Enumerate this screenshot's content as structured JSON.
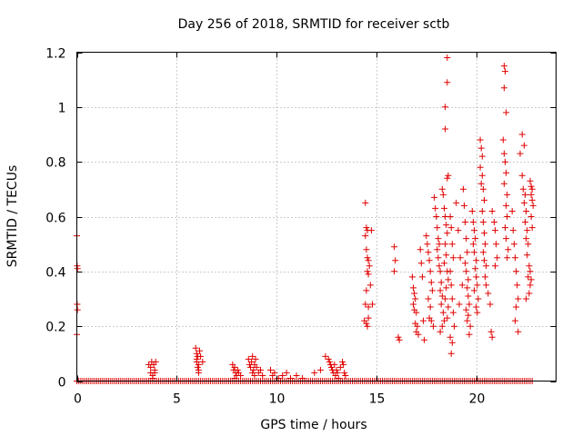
{
  "chart_data": {
    "type": "scatter",
    "title": "Day 256 of 2018, SRMTID for receiver sctb",
    "xlabel": "GPS time / hours",
    "ylabel": "SRMTID / TECUs",
    "xlim": [
      0,
      24
    ],
    "ylim": [
      0,
      1.2
    ],
    "grid": true,
    "marker": "+",
    "color": "#e00000",
    "x_ticks": [
      0,
      5,
      10,
      15,
      20
    ],
    "x_tick_labels": [
      "0",
      "5",
      "10",
      "15",
      "20"
    ],
    "y_ticks": [
      0,
      0.2,
      0.4,
      0.6,
      0.8,
      1.0,
      1.2
    ],
    "y_tick_labels": [
      "0",
      "0.2",
      "0.4",
      "0.6",
      "0.8",
      "1",
      "1.2"
    ],
    "baseline": {
      "x_start": 0.0,
      "x_end": 22.8,
      "step": 0.1,
      "y": 0.0
    },
    "points": [
      [
        0.0,
        0.53
      ],
      [
        0.02,
        0.42
      ],
      [
        0.03,
        0.41
      ],
      [
        0.02,
        0.28
      ],
      [
        0.03,
        0.26
      ],
      [
        0.0,
        0.17
      ],
      [
        3.6,
        0.06
      ],
      [
        3.7,
        0.05
      ],
      [
        3.7,
        0.03
      ],
      [
        3.75,
        0.07
      ],
      [
        3.8,
        0.02
      ],
      [
        3.85,
        0.06
      ],
      [
        3.9,
        0.04
      ],
      [
        3.95,
        0.07
      ],
      [
        3.9,
        0.03
      ],
      [
        3.8,
        0.01
      ],
      [
        5.95,
        0.12
      ],
      [
        6.0,
        0.1
      ],
      [
        6.05,
        0.09
      ],
      [
        6.0,
        0.07
      ],
      [
        6.1,
        0.06
      ],
      [
        6.05,
        0.05
      ],
      [
        6.1,
        0.04
      ],
      [
        6.0,
        0.08
      ],
      [
        6.15,
        0.11
      ],
      [
        6.2,
        0.09
      ],
      [
        6.3,
        0.07
      ],
      [
        6.1,
        0.03
      ],
      [
        7.8,
        0.06
      ],
      [
        7.85,
        0.04
      ],
      [
        7.9,
        0.05
      ],
      [
        7.95,
        0.03
      ],
      [
        8.0,
        0.02
      ],
      [
        8.05,
        0.04
      ],
      [
        7.9,
        0.01
      ],
      [
        8.1,
        0.03
      ],
      [
        8.2,
        0.02
      ],
      [
        8.6,
        0.08
      ],
      [
        8.65,
        0.06
      ],
      [
        8.7,
        0.05
      ],
      [
        8.75,
        0.07
      ],
      [
        8.8,
        0.09
      ],
      [
        8.85,
        0.04
      ],
      [
        8.9,
        0.06
      ],
      [
        8.95,
        0.08
      ],
      [
        8.8,
        0.03
      ],
      [
        8.9,
        0.02
      ],
      [
        9.0,
        0.05
      ],
      [
        9.1,
        0.03
      ],
      [
        9.2,
        0.04
      ],
      [
        9.3,
        0.02
      ],
      [
        9.7,
        0.04
      ],
      [
        9.8,
        0.02
      ],
      [
        9.9,
        0.03
      ],
      [
        10.1,
        0.01
      ],
      [
        10.3,
        0.02
      ],
      [
        10.5,
        0.03
      ],
      [
        10.7,
        0.01
      ],
      [
        11.0,
        0.02
      ],
      [
        11.3,
        0.01
      ],
      [
        11.9,
        0.03
      ],
      [
        12.2,
        0.04
      ],
      [
        12.45,
        0.09
      ],
      [
        12.6,
        0.08
      ],
      [
        12.65,
        0.07
      ],
      [
        12.7,
        0.06
      ],
      [
        12.75,
        0.05
      ],
      [
        12.8,
        0.04
      ],
      [
        12.85,
        0.03
      ],
      [
        12.9,
        0.06
      ],
      [
        12.95,
        0.02
      ],
      [
        13.0,
        0.04
      ],
      [
        13.05,
        0.03
      ],
      [
        13.1,
        0.01
      ],
      [
        13.2,
        0.05
      ],
      [
        13.3,
        0.07
      ],
      [
        13.35,
        0.06
      ],
      [
        13.4,
        0.03
      ],
      [
        13.45,
        0.02
      ],
      [
        14.45,
        0.65
      ],
      [
        14.5,
        0.56
      ],
      [
        14.55,
        0.55
      ],
      [
        14.45,
        0.53
      ],
      [
        14.5,
        0.48
      ],
      [
        14.55,
        0.45
      ],
      [
        14.6,
        0.44
      ],
      [
        14.65,
        0.42
      ],
      [
        14.55,
        0.4
      ],
      [
        14.6,
        0.39
      ],
      [
        14.7,
        0.35
      ],
      [
        14.5,
        0.33
      ],
      [
        14.45,
        0.28
      ],
      [
        14.6,
        0.27
      ],
      [
        14.4,
        0.22
      ],
      [
        14.5,
        0.21
      ],
      [
        14.55,
        0.2
      ],
      [
        14.6,
        0.23
      ],
      [
        14.75,
        0.55
      ],
      [
        14.8,
        0.28
      ],
      [
        15.9,
        0.49
      ],
      [
        15.95,
        0.44
      ],
      [
        15.9,
        0.4
      ],
      [
        16.1,
        0.16
      ],
      [
        16.15,
        0.15
      ],
      [
        16.8,
        0.38
      ],
      [
        16.85,
        0.34
      ],
      [
        16.9,
        0.32
      ],
      [
        16.95,
        0.3
      ],
      [
        16.85,
        0.28
      ],
      [
        16.9,
        0.26
      ],
      [
        17.0,
        0.25
      ],
      [
        16.95,
        0.21
      ],
      [
        17.0,
        0.18
      ],
      [
        17.1,
        0.17
      ],
      [
        17.05,
        0.2
      ],
      [
        17.2,
        0.48
      ],
      [
        17.25,
        0.43
      ],
      [
        17.3,
        0.38
      ],
      [
        17.35,
        0.22
      ],
      [
        17.4,
        0.15
      ],
      [
        17.5,
        0.53
      ],
      [
        17.55,
        0.5
      ],
      [
        17.6,
        0.47
      ],
      [
        17.65,
        0.44
      ],
      [
        17.7,
        0.4
      ],
      [
        17.75,
        0.36
      ],
      [
        17.8,
        0.33
      ],
      [
        17.6,
        0.3
      ],
      [
        17.7,
        0.27
      ],
      [
        17.65,
        0.23
      ],
      [
        17.75,
        0.22
      ],
      [
        17.85,
        0.2
      ],
      [
        17.9,
        0.67
      ],
      [
        17.95,
        0.63
      ],
      [
        18.0,
        0.6
      ],
      [
        18.05,
        0.56
      ],
      [
        18.1,
        0.52
      ],
      [
        18.15,
        0.5
      ],
      [
        18.05,
        0.48
      ],
      [
        18.1,
        0.45
      ],
      [
        18.15,
        0.42
      ],
      [
        18.2,
        0.4
      ],
      [
        18.25,
        0.36
      ],
      [
        18.2,
        0.33
      ],
      [
        18.3,
        0.31
      ],
      [
        18.25,
        0.28
      ],
      [
        18.35,
        0.25
      ],
      [
        18.4,
        0.22
      ],
      [
        18.3,
        0.2
      ],
      [
        18.2,
        0.18
      ],
      [
        18.3,
        0.7
      ],
      [
        18.35,
        0.68
      ],
      [
        18.4,
        0.63
      ],
      [
        18.45,
        0.6
      ],
      [
        18.5,
        0.57
      ],
      [
        18.55,
        0.54
      ],
      [
        18.45,
        0.5
      ],
      [
        18.5,
        0.46
      ],
      [
        18.4,
        0.43
      ],
      [
        18.55,
        0.4
      ],
      [
        18.6,
        0.37
      ],
      [
        18.5,
        0.34
      ],
      [
        18.45,
        0.3
      ],
      [
        18.6,
        0.27
      ],
      [
        18.55,
        0.23
      ],
      [
        18.55,
        1.18
      ],
      [
        18.55,
        1.09
      ],
      [
        18.45,
        1.0
      ],
      [
        18.45,
        0.92
      ],
      [
        18.6,
        0.75
      ],
      [
        18.55,
        0.74
      ],
      [
        18.7,
        0.6
      ],
      [
        18.75,
        0.56
      ],
      [
        18.8,
        0.5
      ],
      [
        18.85,
        0.45
      ],
      [
        18.7,
        0.4
      ],
      [
        18.75,
        0.35
      ],
      [
        18.8,
        0.3
      ],
      [
        18.85,
        0.25
      ],
      [
        18.9,
        0.2
      ],
      [
        18.7,
        0.16
      ],
      [
        18.8,
        0.14
      ],
      [
        18.75,
        0.1
      ],
      [
        19.0,
        0.65
      ],
      [
        19.1,
        0.55
      ],
      [
        19.2,
        0.45
      ],
      [
        19.3,
        0.35
      ],
      [
        19.15,
        0.28
      ],
      [
        19.35,
        0.7
      ],
      [
        19.4,
        0.64
      ],
      [
        19.45,
        0.58
      ],
      [
        19.5,
        0.52
      ],
      [
        19.55,
        0.47
      ],
      [
        19.45,
        0.43
      ],
      [
        19.5,
        0.4
      ],
      [
        19.6,
        0.37
      ],
      [
        19.55,
        0.34
      ],
      [
        19.6,
        0.31
      ],
      [
        19.65,
        0.28
      ],
      [
        19.5,
        0.26
      ],
      [
        19.6,
        0.24
      ],
      [
        19.55,
        0.22
      ],
      [
        19.7,
        0.2
      ],
      [
        19.65,
        0.17
      ],
      [
        19.8,
        0.62
      ],
      [
        19.85,
        0.58
      ],
      [
        19.9,
        0.55
      ],
      [
        19.95,
        0.52
      ],
      [
        19.85,
        0.5
      ],
      [
        19.9,
        0.47
      ],
      [
        20.0,
        0.44
      ],
      [
        19.95,
        0.41
      ],
      [
        20.0,
        0.38
      ],
      [
        20.05,
        0.35
      ],
      [
        19.9,
        0.33
      ],
      [
        20.1,
        0.3
      ],
      [
        20.0,
        0.27
      ],
      [
        20.05,
        0.25
      ],
      [
        20.2,
        0.88
      ],
      [
        20.25,
        0.85
      ],
      [
        20.3,
        0.82
      ],
      [
        20.2,
        0.78
      ],
      [
        20.3,
        0.75
      ],
      [
        20.25,
        0.72
      ],
      [
        20.35,
        0.7
      ],
      [
        20.4,
        0.66
      ],
      [
        20.3,
        0.62
      ],
      [
        20.35,
        0.58
      ],
      [
        20.4,
        0.54
      ],
      [
        20.45,
        0.5
      ],
      [
        20.35,
        0.47
      ],
      [
        20.4,
        0.44
      ],
      [
        20.5,
        0.42
      ],
      [
        20.45,
        0.38
      ],
      [
        20.5,
        0.35
      ],
      [
        20.6,
        0.32
      ],
      [
        20.7,
        0.28
      ],
      [
        20.75,
        0.18
      ],
      [
        20.8,
        0.16
      ],
      [
        20.8,
        0.62
      ],
      [
        20.9,
        0.58
      ],
      [
        20.95,
        0.55
      ],
      [
        21.0,
        0.5
      ],
      [
        21.05,
        0.45
      ],
      [
        20.95,
        0.42
      ],
      [
        21.4,
        1.15
      ],
      [
        21.45,
        1.13
      ],
      [
        21.4,
        1.07
      ],
      [
        21.5,
        0.98
      ],
      [
        21.35,
        0.88
      ],
      [
        21.4,
        0.83
      ],
      [
        21.45,
        0.8
      ],
      [
        21.5,
        0.76
      ],
      [
        21.4,
        0.72
      ],
      [
        21.55,
        0.68
      ],
      [
        21.5,
        0.64
      ],
      [
        21.55,
        0.6
      ],
      [
        21.45,
        0.56
      ],
      [
        21.5,
        0.52
      ],
      [
        21.6,
        0.48
      ],
      [
        21.55,
        0.45
      ],
      [
        21.8,
        0.62
      ],
      [
        21.85,
        0.55
      ],
      [
        21.9,
        0.5
      ],
      [
        21.95,
        0.45
      ],
      [
        22.0,
        0.4
      ],
      [
        22.05,
        0.35
      ],
      [
        22.1,
        0.3
      ],
      [
        22.0,
        0.27
      ],
      [
        21.95,
        0.22
      ],
      [
        22.1,
        0.18
      ],
      [
        22.2,
        0.83
      ],
      [
        22.3,
        0.9
      ],
      [
        22.4,
        0.86
      ],
      [
        22.3,
        0.75
      ],
      [
        22.35,
        0.7
      ],
      [
        22.45,
        0.68
      ],
      [
        22.4,
        0.65
      ],
      [
        22.5,
        0.62
      ],
      [
        22.45,
        0.58
      ],
      [
        22.55,
        0.55
      ],
      [
        22.5,
        0.52
      ],
      [
        22.6,
        0.5
      ],
      [
        22.55,
        0.46
      ],
      [
        22.65,
        0.42
      ],
      [
        22.6,
        0.38
      ],
      [
        22.7,
        0.35
      ],
      [
        22.65,
        0.32
      ],
      [
        22.5,
        0.3
      ],
      [
        22.7,
        0.73
      ],
      [
        22.75,
        0.71
      ],
      [
        22.8,
        0.7
      ],
      [
        22.75,
        0.68
      ],
      [
        22.8,
        0.66
      ],
      [
        22.85,
        0.64
      ],
      [
        22.75,
        0.6
      ],
      [
        22.8,
        0.56
      ],
      [
        22.7,
        0.4
      ],
      [
        22.75,
        0.37
      ]
    ]
  }
}
